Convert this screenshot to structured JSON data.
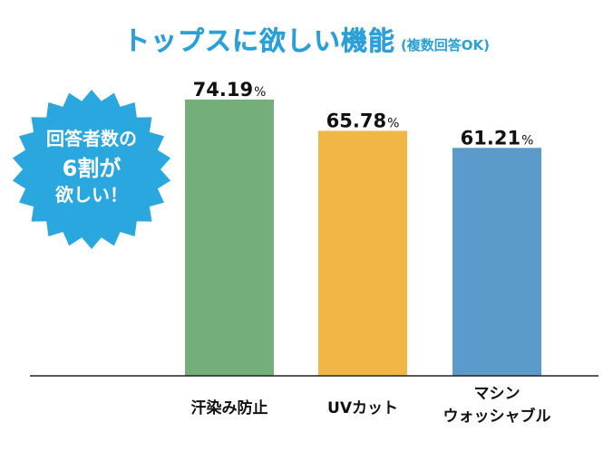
{
  "title": {
    "main": "トップスに欲しい機能",
    "sub": "(複数回答OK)"
  },
  "badge": {
    "lines": [
      "回答者数の",
      "6割が",
      "欲しい！"
    ],
    "color": "#2aa7df"
  },
  "chart_data": {
    "type": "bar",
    "title": "トップスに欲しい機能 (複数回答OK)",
    "categories": [
      "汗染み防止",
      "UVカット",
      "マシン ウォッシャブル"
    ],
    "category_lines": [
      [
        "汗染み防止"
      ],
      [
        "UVカット"
      ],
      [
        "マシン",
        "ウォッシャブル"
      ]
    ],
    "values": [
      74.19,
      65.78,
      61.21
    ],
    "value_labels": [
      "74.19",
      "65.78",
      "61.21"
    ],
    "unit": "%",
    "colors": [
      "#74ae78",
      "#f0b646",
      "#5b9bcb"
    ],
    "ylim": [
      0,
      80
    ],
    "grid": false,
    "legend": "none"
  }
}
